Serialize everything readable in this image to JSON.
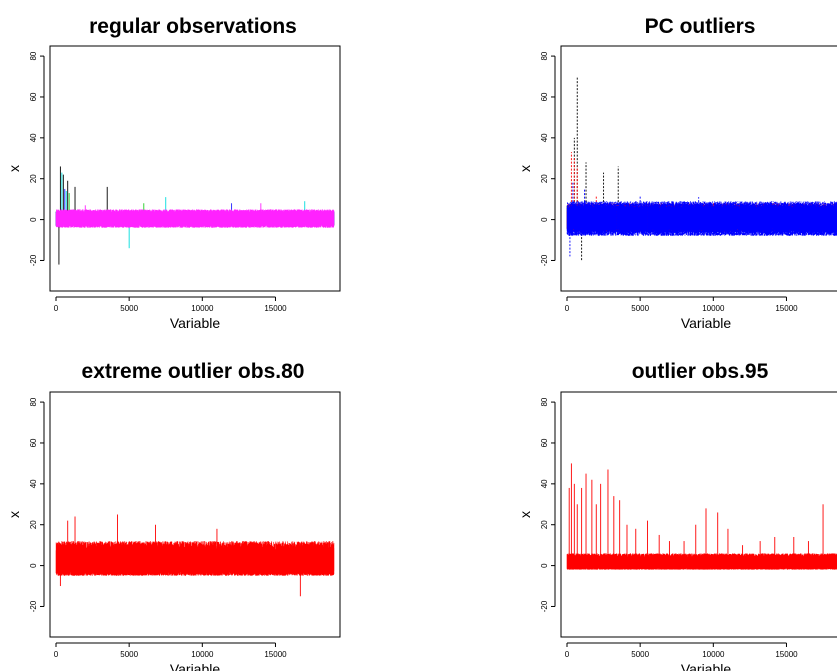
{
  "chart_data": [
    {
      "type": "line",
      "title": "regular observations",
      "xlabel": "Variable",
      "ylabel": "x",
      "xlim": [
        0,
        19000
      ],
      "ylim": [
        -32,
        82
      ],
      "x_ticks": [
        0,
        5000,
        10000,
        15000
      ],
      "y_ticks": [
        -20,
        0,
        20,
        40,
        60,
        80
      ],
      "n_variables": 19000,
      "series": [
        {
          "color": "#000000",
          "band": [
            -3,
            4
          ],
          "spikes": [
            [
              300,
              26
            ],
            [
              500,
              22
            ],
            [
              800,
              19
            ],
            [
              1300,
              16
            ],
            [
              3500,
              16
            ],
            [
              200,
              -22
            ]
          ]
        },
        {
          "color": "#00dddd",
          "band": [
            -3,
            4
          ],
          "spikes": [
            [
              400,
              23
            ],
            [
              700,
              14
            ],
            [
              5000,
              -14
            ],
            [
              7500,
              11
            ],
            [
              17000,
              9
            ]
          ]
        },
        {
          "color": "#22cc22",
          "band": [
            -3,
            4
          ],
          "spikes": [
            [
              900,
              13
            ],
            [
              6000,
              8
            ]
          ]
        },
        {
          "color": "#2222ff",
          "band": [
            -3,
            4
          ],
          "spikes": [
            [
              600,
              15
            ],
            [
              12000,
              8
            ]
          ]
        },
        {
          "color": "#ff22ff",
          "band": [
            -4,
            5
          ],
          "spikes": [
            [
              2000,
              7
            ],
            [
              14000,
              8
            ]
          ]
        }
      ]
    },
    {
      "type": "line",
      "title": "PC outliers",
      "xlabel": "Variable",
      "ylabel": "x",
      "xlim": [
        0,
        19000
      ],
      "ylim": [
        -32,
        82
      ],
      "x_ticks": [
        0,
        5000,
        10000,
        15000
      ],
      "y_ticks": [
        -20,
        0,
        20,
        40,
        60,
        80
      ],
      "n_variables": 19000,
      "series": [
        {
          "color": "#000000",
          "style": "dashed",
          "band": [
            -5,
            7
          ],
          "spikes": [
            [
              700,
              70
            ],
            [
              1300,
              28
            ],
            [
              2500,
              23
            ],
            [
              3500,
              26
            ],
            [
              500,
              40
            ],
            [
              1000,
              -20
            ]
          ]
        },
        {
          "color": "#ff0000",
          "style": "dashed",
          "band": [
            -6,
            8
          ],
          "spikes": [
            [
              300,
              33
            ],
            [
              500,
              30
            ],
            [
              700,
              26
            ],
            [
              2000,
              12
            ]
          ]
        },
        {
          "color": "#0000ff",
          "style": "dashed",
          "band": [
            -8,
            9
          ],
          "spikes": [
            [
              200,
              -18
            ],
            [
              400,
              18
            ],
            [
              1200,
              15
            ],
            [
              5000,
              12
            ],
            [
              9000,
              11
            ],
            [
              14000,
              9
            ]
          ]
        }
      ]
    },
    {
      "type": "line",
      "title": "extreme outlier obs.80",
      "xlabel": "Variable",
      "ylabel": "x",
      "xlim": [
        0,
        19000
      ],
      "ylim": [
        -32,
        82
      ],
      "x_ticks": [
        0,
        5000,
        10000,
        15000
      ],
      "y_ticks": [
        -20,
        0,
        20,
        40,
        60,
        80
      ],
      "n_variables": 19000,
      "series": [
        {
          "color": "#ff0000",
          "band": [
            -5,
            12
          ],
          "spikes": [
            [
              800,
              22
            ],
            [
              1300,
              24
            ],
            [
              4200,
              25
            ],
            [
              6800,
              20
            ],
            [
              16700,
              -15
            ],
            [
              11000,
              18
            ],
            [
              300,
              -10
            ]
          ]
        }
      ]
    },
    {
      "type": "line",
      "title": "outlier obs.95",
      "xlabel": "Variable",
      "ylabel": "x",
      "xlim": [
        0,
        19000
      ],
      "ylim": [
        -32,
        82
      ],
      "x_ticks": [
        0,
        5000,
        10000,
        15000
      ],
      "y_ticks": [
        -20,
        0,
        20,
        40,
        60,
        80
      ],
      "n_variables": 19000,
      "series": [
        {
          "color": "#ff0000",
          "band": [
            -2,
            6
          ],
          "spikes": [
            [
              150,
              38
            ],
            [
              300,
              50
            ],
            [
              500,
              40
            ],
            [
              700,
              30
            ],
            [
              1000,
              38
            ],
            [
              1300,
              45
            ],
            [
              1700,
              42
            ],
            [
              2000,
              30
            ],
            [
              2300,
              40
            ],
            [
              2800,
              47
            ],
            [
              3200,
              34
            ],
            [
              3600,
              32
            ],
            [
              4100,
              20
            ],
            [
              4700,
              18
            ],
            [
              5500,
              22
            ],
            [
              6300,
              15
            ],
            [
              7000,
              12
            ],
            [
              8000,
              12
            ],
            [
              8800,
              20
            ],
            [
              9500,
              28
            ],
            [
              10300,
              26
            ],
            [
              11000,
              18
            ],
            [
              12000,
              10
            ],
            [
              13200,
              12
            ],
            [
              14200,
              14
            ],
            [
              15500,
              14
            ],
            [
              16500,
              12
            ],
            [
              17500,
              30
            ],
            [
              18500,
              18
            ]
          ]
        }
      ]
    }
  ]
}
